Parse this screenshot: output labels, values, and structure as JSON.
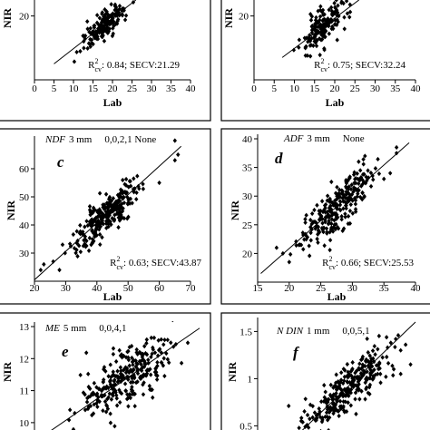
{
  "chart_data": [
    {
      "id": "a",
      "type": "scatter",
      "letter": "",
      "header": {
        "property": "",
        "size": "",
        "spec": ""
      },
      "xlabel": "Lab",
      "ylabel": "NIR",
      "xlim": [
        0,
        40
      ],
      "ylim": [
        0,
        25
      ],
      "xticks": [
        "0",
        "5",
        "10",
        "15",
        "20",
        "25",
        "30",
        "35",
        "40"
      ],
      "yticks": [
        "20"
      ],
      "yticks_values": [
        20
      ],
      "stats": {
        "r2_label": "R",
        "r2_sup": "2",
        "r2_sub": "cv",
        "text": ": 0.84; SECV:21.29"
      },
      "fit": [
        [
          5,
          5.0
        ],
        [
          26,
          25.0
        ]
      ],
      "cloud": {
        "xmin": 9.5,
        "xmax": 26,
        "slope": 0.95,
        "intercept": 0.2,
        "spread": 2.2,
        "n": 170,
        "seed": 11
      },
      "points": []
    },
    {
      "id": "b",
      "type": "scatter",
      "letter": "",
      "header": {
        "property": "",
        "size": "",
        "spec": ""
      },
      "xlabel": "Lab",
      "ylabel": "NIR",
      "xlim": [
        0,
        40
      ],
      "ylim": [
        0,
        25
      ],
      "xticks": [
        "0",
        "5",
        "10",
        "15",
        "20",
        "25",
        "30",
        "35",
        "40"
      ],
      "yticks": [
        "20"
      ],
      "yticks_values": [
        20
      ],
      "stats": {
        "r2_label": "R",
        "r2_sup": "2",
        "r2_sub": "cv",
        "text": ": 0.75; SECV:32.24"
      },
      "fit": [
        [
          7,
          7.0
        ],
        [
          26,
          25.0
        ]
      ],
      "cloud": {
        "xmin": 9,
        "xmax": 26,
        "slope": 0.95,
        "intercept": 0.4,
        "spread": 2.8,
        "n": 170,
        "seed": 23
      },
      "points": []
    },
    {
      "id": "c",
      "type": "scatter",
      "letter": "c",
      "header": {
        "property": "NDF",
        "size": "3 mm",
        "spec": "0,0,2,1  None"
      },
      "xlabel": "Lab",
      "ylabel": "NIR",
      "xlim": [
        20,
        70
      ],
      "ylim": [
        20,
        70
      ],
      "xticks": [
        "20",
        "30",
        "40",
        "50",
        "60",
        "70"
      ],
      "yticks": [
        "30",
        "40",
        "50",
        "60"
      ],
      "yticks_values": [
        30,
        40,
        50,
        60
      ],
      "stats": {
        "r2_label": "R",
        "r2_sup": "2",
        "r2_sub": "cv",
        "text": ": 0.63; SECV:43.87"
      },
      "fit": [
        [
          20,
          20.5
        ],
        [
          67,
          68
        ]
      ],
      "cloud": {
        "xmin": 27,
        "xmax": 58,
        "slope": 0.88,
        "intercept": 5.5,
        "spread": 3.2,
        "n": 260,
        "seed": 37
      },
      "points": [
        [
          22,
          24
        ],
        [
          23,
          26
        ],
        [
          26,
          27
        ],
        [
          28,
          24
        ],
        [
          65,
          70
        ],
        [
          66,
          65
        ],
        [
          65,
          63
        ],
        [
          60,
          55
        ],
        [
          29,
          33
        ]
      ]
    },
    {
      "id": "d",
      "type": "scatter",
      "letter": "d",
      "header": {
        "property": "ADF",
        "size": "3 mm",
        "spec": "None"
      },
      "xlabel": "Lab",
      "ylabel": "NIR",
      "xlim": [
        15,
        40
      ],
      "ylim": [
        15,
        40
      ],
      "xticks": [
        "15",
        "20",
        "25",
        "30",
        "35",
        "40"
      ],
      "yticks": [
        "20",
        "25",
        "30",
        "35",
        "40"
      ],
      "yticks_values": [
        20,
        25,
        30,
        35,
        40
      ],
      "stats": {
        "r2_label": "R",
        "r2_sup": "2",
        "r2_sub": "cv",
        "text": ": 0.66; SECV:25.53"
      },
      "fit": [
        [
          15.5,
          16.5
        ],
        [
          39,
          39.3
        ]
      ],
      "cloud": {
        "xmin": 19,
        "xmax": 36,
        "slope": 1.0,
        "intercept": 0.2,
        "spread": 1.9,
        "n": 260,
        "seed": 51
      },
      "points": [
        [
          37,
          37.5
        ],
        [
          37,
          38.5
        ],
        [
          35,
          33
        ],
        [
          36,
          34
        ],
        [
          19,
          20
        ],
        [
          18,
          21
        ],
        [
          20,
          18.5
        ],
        [
          31,
          36
        ],
        [
          32,
          37
        ]
      ]
    },
    {
      "id": "e",
      "type": "scatter",
      "letter": "e",
      "header": {
        "property": "ME",
        "size": "5 mm",
        "spec": "0,0,4,1"
      },
      "xlabel": "",
      "ylabel": "NIR",
      "xlim": [
        9.5,
        13
      ],
      "ylim": [
        9.6,
        13
      ],
      "xticks": [],
      "yticks": [
        "10",
        "11",
        "12",
        "13"
      ],
      "yticks_values": [
        10,
        11,
        12,
        13
      ],
      "stats": null,
      "fit": [
        [
          9.7,
          9.6
        ],
        [
          13,
          12.95
        ]
      ],
      "cloud": {
        "xmin": 10.1,
        "xmax": 12.9,
        "slope": 0.75,
        "intercept": 2.8,
        "spread": 0.42,
        "n": 280,
        "seed": 67
      },
      "points": []
    },
    {
      "id": "f",
      "type": "scatter",
      "letter": "f",
      "header": {
        "property": "N DIN",
        "size": "1 mm",
        "spec": "0,0,5,1"
      },
      "xlabel": "",
      "ylabel": "NIR",
      "xlim": [
        0,
        1.6
      ],
      "ylim": [
        0.35,
        1.6
      ],
      "xticks": [],
      "yticks": [
        "0.5",
        "1",
        "1.5"
      ],
      "yticks_values": [
        0.5,
        1,
        1.5
      ],
      "stats": null,
      "fit": [
        [
          0.35,
          0.35
        ],
        [
          1.6,
          1.6
        ]
      ],
      "cloud": {
        "xmin": 0.25,
        "xmax": 1.55,
        "slope": 0.78,
        "intercept": 0.18,
        "spread": 0.12,
        "n": 280,
        "seed": 83
      },
      "points": [
        [
          1.4,
          1.42
        ],
        [
          1.35,
          1.38
        ],
        [
          1.45,
          1.3
        ],
        [
          1.5,
          1.36
        ],
        [
          1.3,
          1.02
        ],
        [
          1.38,
          1.1
        ],
        [
          1.45,
          1.05
        ],
        [
          1.55,
          1.15
        ]
      ]
    }
  ]
}
